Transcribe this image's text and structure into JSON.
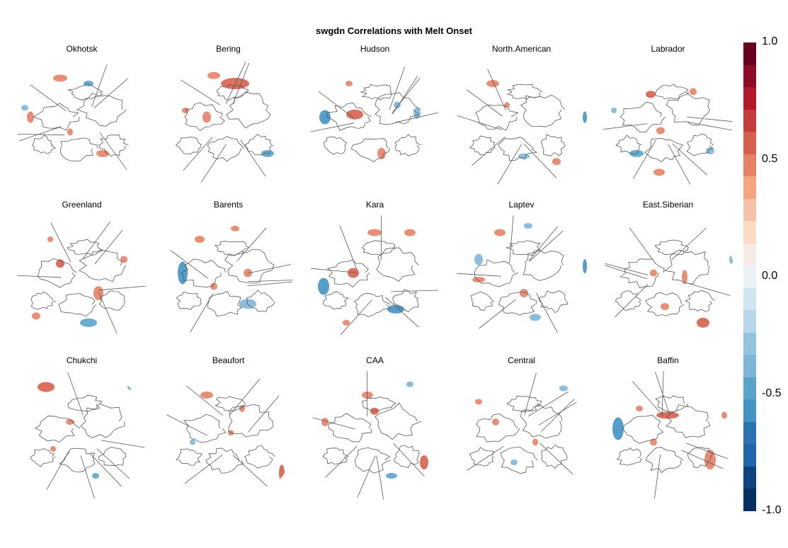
{
  "title": "swgdn Correlations with Melt Onset",
  "panels": [
    {
      "name": "Okhotsk",
      "blobs": [
        [
          0.35,
          0.16,
          10,
          5,
          "#e58267"
        ],
        [
          0.55,
          0.2,
          7,
          4,
          "#5aa4cc"
        ],
        [
          0.14,
          0.45,
          5,
          8,
          "#e58267"
        ],
        [
          0.42,
          0.56,
          4,
          5,
          "#e58267"
        ],
        [
          0.65,
          0.72,
          9,
          5,
          "#e58267"
        ],
        [
          0.1,
          0.38,
          5,
          4,
          "#7fb6d8"
        ]
      ]
    },
    {
      "name": "Bering",
      "blobs": [
        [
          0.55,
          0.2,
          20,
          8,
          "#d6604d"
        ],
        [
          0.4,
          0.14,
          9,
          5,
          "#e58267"
        ],
        [
          0.35,
          0.45,
          6,
          8,
          "#e58267"
        ],
        [
          0.78,
          0.72,
          9,
          5,
          "#5aa4cc"
        ],
        [
          0.2,
          0.4,
          5,
          4,
          "#e58267"
        ]
      ]
    },
    {
      "name": "Hudson",
      "blobs": [
        [
          0.15,
          0.45,
          8,
          10,
          "#4393c3"
        ],
        [
          0.36,
          0.43,
          12,
          7,
          "#d6604d"
        ],
        [
          0.32,
          0.2,
          5,
          4,
          "#e58267"
        ],
        [
          0.8,
          0.42,
          5,
          8,
          "#7fb6d8"
        ],
        [
          0.55,
          0.72,
          6,
          8,
          "#e58267"
        ],
        [
          0.66,
          0.36,
          5,
          5,
          "#7fb6d8"
        ]
      ]
    },
    {
      "name": "North.American",
      "blobs": [
        [
          0.3,
          0.2,
          9,
          5,
          "#e58267"
        ],
        [
          0.95,
          0.45,
          3,
          8,
          "#4393c3"
        ],
        [
          0.75,
          0.78,
          6,
          5,
          "#e58267"
        ],
        [
          0.52,
          0.74,
          8,
          4,
          "#7fb6d8"
        ],
        [
          0.4,
          0.36,
          4,
          4,
          "#e58267"
        ]
      ]
    },
    {
      "name": "Labrador",
      "blobs": [
        [
          0.38,
          0.28,
          7,
          5,
          "#d6604d"
        ],
        [
          0.68,
          0.26,
          5,
          5,
          "#e58267"
        ],
        [
          0.45,
          0.55,
          6,
          5,
          "#e58267"
        ],
        [
          0.28,
          0.72,
          10,
          5,
          "#5aa4cc"
        ],
        [
          0.44,
          0.86,
          8,
          5,
          "#e58267"
        ],
        [
          0.8,
          0.7,
          6,
          5,
          "#7fb6d8"
        ],
        [
          0.12,
          0.4,
          4,
          4,
          "#7fb6d8"
        ]
      ]
    },
    {
      "name": "Greenland",
      "blobs": [
        [
          0.35,
          0.38,
          6,
          6,
          "#d6604d"
        ],
        [
          0.62,
          0.6,
          7,
          10,
          "#e58267"
        ],
        [
          0.55,
          0.82,
          12,
          6,
          "#5aa4cc"
        ],
        [
          0.18,
          0.77,
          6,
          5,
          "#e58267"
        ],
        [
          0.28,
          0.2,
          4,
          4,
          "#e58267"
        ],
        [
          0.8,
          0.35,
          5,
          5,
          "#e58267"
        ]
      ]
    },
    {
      "name": "Barents",
      "blobs": [
        [
          0.18,
          0.45,
          7,
          16,
          "#4393c3"
        ],
        [
          0.3,
          0.2,
          7,
          5,
          "#e58267"
        ],
        [
          0.64,
          0.45,
          6,
          6,
          "#e58267"
        ],
        [
          0.64,
          0.68,
          12,
          7,
          "#7fb6d8"
        ],
        [
          0.4,
          0.55,
          5,
          5,
          "#e58267"
        ],
        [
          0.55,
          0.12,
          6,
          4,
          "#e58267"
        ]
      ]
    },
    {
      "name": "Kara",
      "blobs": [
        [
          0.14,
          0.55,
          8,
          12,
          "#4393c3"
        ],
        [
          0.35,
          0.45,
          8,
          7,
          "#d6604d"
        ],
        [
          0.5,
          0.15,
          10,
          5,
          "#e58267"
        ],
        [
          0.75,
          0.15,
          8,
          5,
          "#e58267"
        ],
        [
          0.65,
          0.72,
          12,
          6,
          "#4393c3"
        ],
        [
          0.3,
          0.82,
          5,
          4,
          "#e58267"
        ]
      ]
    },
    {
      "name": "Laptev",
      "blobs": [
        [
          0.2,
          0.35,
          6,
          8,
          "#7fb6d8"
        ],
        [
          0.35,
          0.15,
          8,
          5,
          "#e58267"
        ],
        [
          0.55,
          0.1,
          6,
          4,
          "#7fb6d8"
        ],
        [
          0.95,
          0.4,
          3,
          10,
          "#4393c3"
        ],
        [
          0.2,
          0.5,
          9,
          4,
          "#e58267"
        ],
        [
          0.52,
          0.6,
          6,
          6,
          "#e58267"
        ],
        [
          0.6,
          0.78,
          8,
          5,
          "#7fb6d8"
        ]
      ]
    },
    {
      "name": "East.Siberian",
      "blobs": [
        [
          0.62,
          0.48,
          4,
          10,
          "#e58267"
        ],
        [
          0.75,
          0.82,
          9,
          7,
          "#d6604d"
        ],
        [
          0.95,
          0.35,
          3,
          6,
          "#7fb6d8"
        ],
        [
          0.4,
          0.45,
          5,
          5,
          "#e58267"
        ],
        [
          0.48,
          0.7,
          6,
          5,
          "#e58267"
        ]
      ]
    },
    {
      "name": "Chukchi",
      "blobs": [
        [
          0.25,
          0.14,
          12,
          7,
          "#d6604d"
        ],
        [
          0.85,
          0.14,
          5,
          4,
          "#5aa4cc"
        ],
        [
          0.42,
          0.4,
          6,
          4,
          "#e58267"
        ],
        [
          0.6,
          0.8,
          5,
          4,
          "#5aa4cc"
        ],
        [
          0.3,
          0.6,
          4,
          4,
          "#e58267"
        ]
      ]
    },
    {
      "name": "Beaufort",
      "blobs": [
        [
          0.35,
          0.2,
          9,
          5,
          "#e58267"
        ],
        [
          0.88,
          0.78,
          4,
          12,
          "#d6604d"
        ],
        [
          0.6,
          0.3,
          4,
          5,
          "#e58267"
        ],
        [
          0.52,
          0.48,
          4,
          4,
          "#e58267"
        ],
        [
          0.25,
          0.55,
          4,
          4,
          "#7fb6d8"
        ]
      ]
    },
    {
      "name": "CAA",
      "blobs": [
        [
          0.45,
          0.2,
          8,
          5,
          "#e58267"
        ],
        [
          0.5,
          0.32,
          6,
          5,
          "#d6604d"
        ],
        [
          0.85,
          0.7,
          6,
          10,
          "#d6604d"
        ],
        [
          0.15,
          0.4,
          5,
          6,
          "#e58267"
        ],
        [
          0.62,
          0.8,
          8,
          4,
          "#5aa4cc"
        ],
        [
          0.75,
          0.12,
          5,
          4,
          "#7fb6d8"
        ]
      ]
    },
    {
      "name": "Central",
      "blobs": [
        [
          0.8,
          0.15,
          6,
          4,
          "#7fb6d8"
        ],
        [
          0.32,
          0.4,
          5,
          5,
          "#e58267"
        ],
        [
          0.6,
          0.55,
          4,
          5,
          "#e58267"
        ],
        [
          0.45,
          0.7,
          5,
          4,
          "#7fb6d8"
        ],
        [
          0.2,
          0.25,
          5,
          4,
          "#e58267"
        ]
      ]
    },
    {
      "name": "Baffin",
      "blobs": [
        [
          0.15,
          0.45,
          8,
          16,
          "#4393c3"
        ],
        [
          0.5,
          0.35,
          16,
          5,
          "#d6604d"
        ],
        [
          0.8,
          0.68,
          8,
          14,
          "#e58267"
        ],
        [
          0.4,
          0.55,
          5,
          5,
          "#e58267"
        ],
        [
          0.3,
          0.3,
          5,
          4,
          "#e58267"
        ],
        [
          0.9,
          0.35,
          4,
          5,
          "#e58267"
        ]
      ]
    }
  ],
  "colorbar": {
    "colors": [
      "#67001f",
      "#8c0c25",
      "#b2182b",
      "#c43c3c",
      "#d6604d",
      "#e58267",
      "#f4a582",
      "#f7c2a7",
      "#fddbc7",
      "#f6eae4",
      "#ecf1f5",
      "#d1e5f0",
      "#b8d7e9",
      "#92c5de",
      "#7fb6d8",
      "#5aa4cc",
      "#4393c3",
      "#2b72b1",
      "#2166ac",
      "#0f437b",
      "#053061"
    ],
    "ticks": [
      {
        "label": "1.0",
        "value": 1.0
      },
      {
        "label": "0.5",
        "value": 0.5
      },
      {
        "label": "0.0",
        "value": 0.0
      },
      {
        "label": "-0.5",
        "value": -0.5
      },
      {
        "label": "-1.0",
        "value": -1.0
      }
    ]
  }
}
